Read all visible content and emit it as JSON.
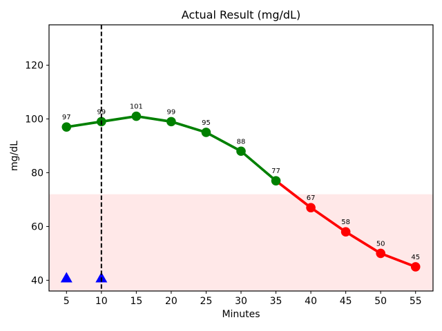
{
  "chart_data": {
    "type": "line",
    "title": "Actual Result (mg/dL)",
    "xlabel": "Minutes",
    "ylabel": "mg/dL",
    "x": [
      5,
      10,
      15,
      20,
      25,
      30,
      35,
      40,
      45,
      50,
      55
    ],
    "series": [
      {
        "name": "Actual Result",
        "values": [
          97,
          99,
          101,
          99,
          95,
          88,
          77,
          67,
          58,
          50,
          45
        ],
        "point_labels": [
          "97",
          "99",
          "101",
          "99",
          "95",
          "88",
          "77",
          "67",
          "58",
          "50",
          "45"
        ]
      }
    ],
    "threshold": 72,
    "colors": {
      "above_threshold": "#008000",
      "below_threshold": "#ff0000",
      "axis": "#000000"
    },
    "low_band": {
      "from": 36,
      "to": 72,
      "color": "rgba(255,0,0,0.09)"
    },
    "vline": {
      "x": 10,
      "style": "dashed",
      "color": "#000000"
    },
    "event_markers": {
      "shape": "triangle-up",
      "color": "#0000ff",
      "points": [
        {
          "x": 5,
          "y": 41
        },
        {
          "x": 10,
          "y": 41
        }
      ]
    },
    "xticks": [
      5,
      10,
      15,
      20,
      25,
      30,
      35,
      40,
      45,
      50,
      55
    ],
    "yticks": [
      40,
      60,
      80,
      100,
      120
    ],
    "xlim": [
      2.5,
      57.5
    ],
    "ylim": [
      36,
      135
    ],
    "grid": false,
    "legend": "none"
  }
}
